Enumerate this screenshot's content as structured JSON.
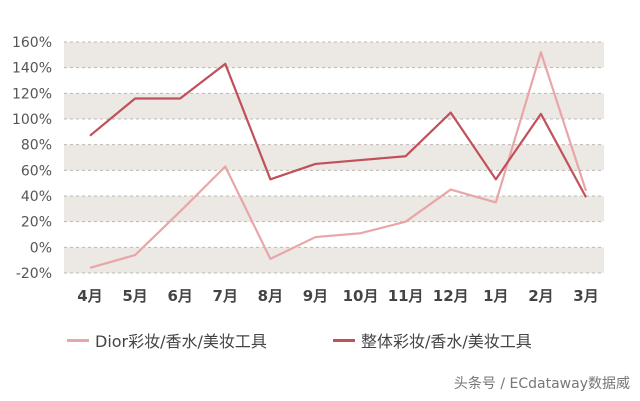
{
  "chart_data": {
    "type": "line",
    "categories": [
      "4月",
      "5月",
      "6月",
      "7月",
      "8月",
      "9月",
      "10月",
      "11月",
      "12月",
      "1月",
      "2月",
      "3月"
    ],
    "y_ticks": [
      "160%",
      "140%",
      "120%",
      "100%",
      "80%",
      "60%",
      "40%",
      "20%",
      "0%",
      "-20%"
    ],
    "ylim": [
      -20,
      160
    ],
    "grid": "alternating horizontal bands",
    "series": [
      {
        "name": "Dior彩妆/香水/美妆工具",
        "color": "#e8a6a8",
        "values": [
          -16,
          -6,
          28,
          63,
          -9,
          8,
          11,
          20,
          45,
          35,
          152,
          44
        ]
      },
      {
        "name": "整体彩妆/香水/美妆工具",
        "color": "#c0505a",
        "values": [
          87,
          116,
          116,
          143,
          53,
          65,
          68,
          71,
          105,
          53,
          104,
          39
        ]
      }
    ],
    "legend_position": "bottom"
  },
  "watermark": "头条号 / ECdataway数据威"
}
